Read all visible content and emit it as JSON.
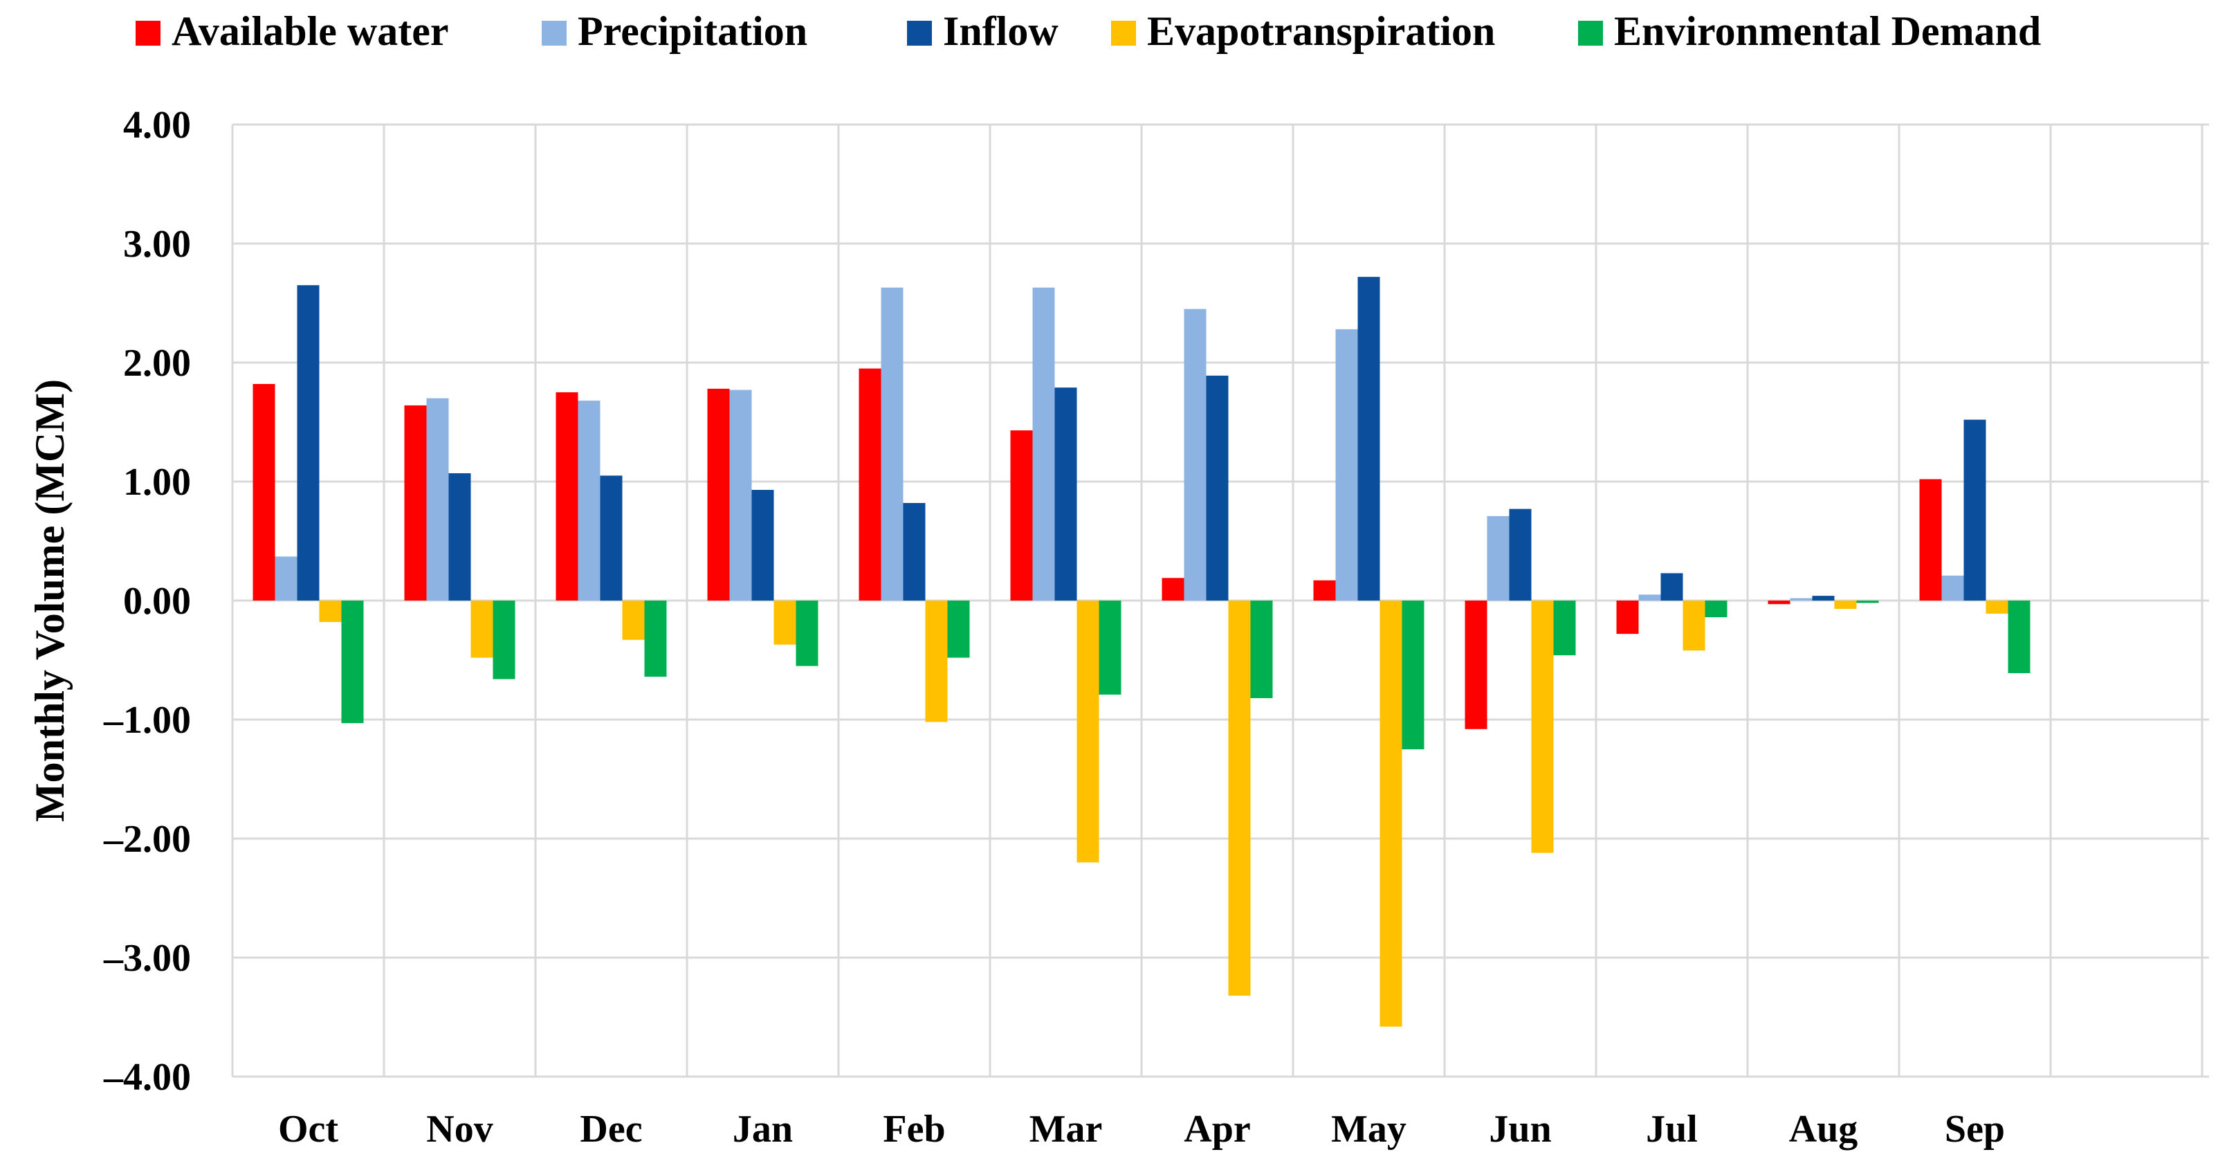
{
  "chart_data": {
    "type": "bar",
    "title": "",
    "xlabel": "",
    "ylabel": "Monthly Volume (MCM)",
    "ylim": [
      -4,
      4
    ],
    "yticks": [
      4,
      3,
      2,
      1,
      0,
      -1,
      -2,
      -3,
      -4
    ],
    "ytick_labels": [
      "4.00",
      "3.00",
      "2.00",
      "1.00",
      "0.00",
      "–1.00",
      "–2.00",
      "–3.00",
      "–4.00"
    ],
    "grid": true,
    "legend_position": "top",
    "categories": [
      "Oct",
      "Nov",
      "Dec",
      "Jan",
      "Feb",
      "Mar",
      "Apr",
      "May",
      "Jun",
      "Jul",
      "Aug",
      "Sep"
    ],
    "series": [
      {
        "name": "Available water",
        "color": "#ff0000",
        "values": [
          1.82,
          1.64,
          1.75,
          1.78,
          1.95,
          1.43,
          0.19,
          0.17,
          -1.08,
          -0.28,
          -0.03,
          1.02
        ]
      },
      {
        "name": "Precipitation",
        "color": "#8db3e2",
        "values": [
          0.37,
          1.7,
          1.68,
          1.77,
          2.63,
          2.63,
          2.45,
          2.28,
          0.71,
          0.05,
          0.02,
          0.21
        ]
      },
      {
        "name": "Inflow",
        "color": "#0b4f9c",
        "values": [
          2.65,
          1.07,
          1.05,
          0.93,
          0.82,
          1.79,
          1.89,
          2.72,
          0.77,
          0.23,
          0.04,
          1.52
        ]
      },
      {
        "name": "Evapotranspiration",
        "color": "#ffc000",
        "values": [
          -0.18,
          -0.48,
          -0.33,
          -0.37,
          -1.02,
          -2.2,
          -3.32,
          -3.58,
          -2.12,
          -0.42,
          -0.07,
          -0.11
        ]
      },
      {
        "name": "Environmental Demand",
        "color": "#00b050",
        "values": [
          -1.03,
          -0.66,
          -0.64,
          -0.55,
          -0.48,
          -0.79,
          -0.82,
          -1.25,
          -0.46,
          -0.14,
          -0.02,
          -0.61
        ]
      }
    ]
  }
}
